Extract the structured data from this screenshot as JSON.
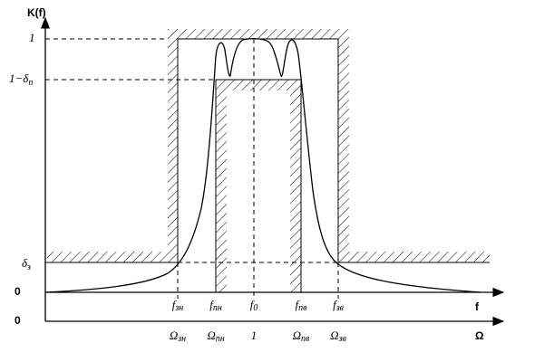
{
  "y_axis_label": "K(f)",
  "levels": {
    "pass_max": "1",
    "pass_min": {
      "main": "1−δ",
      "sub": "п"
    },
    "stop": {
      "main": "δ",
      "sub": "з"
    }
  },
  "origins": [
    "0",
    "0"
  ],
  "frequencies": [
    {
      "f": {
        "main": "f",
        "sub": "зн"
      },
      "omega": {
        "main": "Ω",
        "sub": "зн"
      }
    },
    {
      "f": {
        "main": "f",
        "sub": "пн"
      },
      "omega": {
        "main": "Ω",
        "sub": "пн"
      }
    },
    {
      "f": {
        "main": "f",
        "sub": "0"
      },
      "omega": {
        "main": "1",
        "sub": ""
      }
    },
    {
      "f": {
        "main": "f",
        "sub": "пв"
      },
      "omega": {
        "main": "Ω",
        "sub": "пв"
      }
    },
    {
      "f": {
        "main": "f",
        "sub": "зв"
      },
      "omega": {
        "main": "Ω",
        "sub": "зв"
      }
    }
  ],
  "f_axis_label": "f",
  "omega_axis_label": "Ω"
}
